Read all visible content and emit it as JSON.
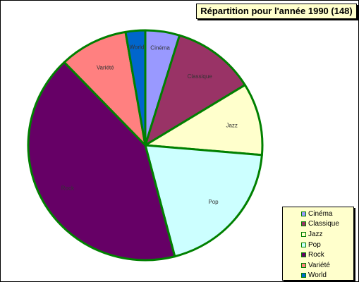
{
  "chart_data": {
    "type": "pie",
    "title": "Répartition pour l'année 1990 (148)",
    "slices": [
      {
        "label": "Cinéma",
        "value": 7,
        "color": "#9999ff"
      },
      {
        "label": "Classique",
        "value": 17,
        "color": "#993366"
      },
      {
        "label": "Jazz",
        "value": 15,
        "color": "#ffffcc"
      },
      {
        "label": "Pop",
        "value": 29,
        "color": "#ccffff"
      },
      {
        "label": "Rock",
        "value": 62,
        "color": "#660066"
      },
      {
        "label": "Variété",
        "value": 14,
        "color": "#ff8080"
      },
      {
        "label": "World",
        "value": 4,
        "color": "#0066cc"
      }
    ],
    "slice_border_color": "#008000",
    "legend_position": "bottom-right",
    "legend_background": "#ffffcc",
    "title_background": "#ffffcc"
  }
}
